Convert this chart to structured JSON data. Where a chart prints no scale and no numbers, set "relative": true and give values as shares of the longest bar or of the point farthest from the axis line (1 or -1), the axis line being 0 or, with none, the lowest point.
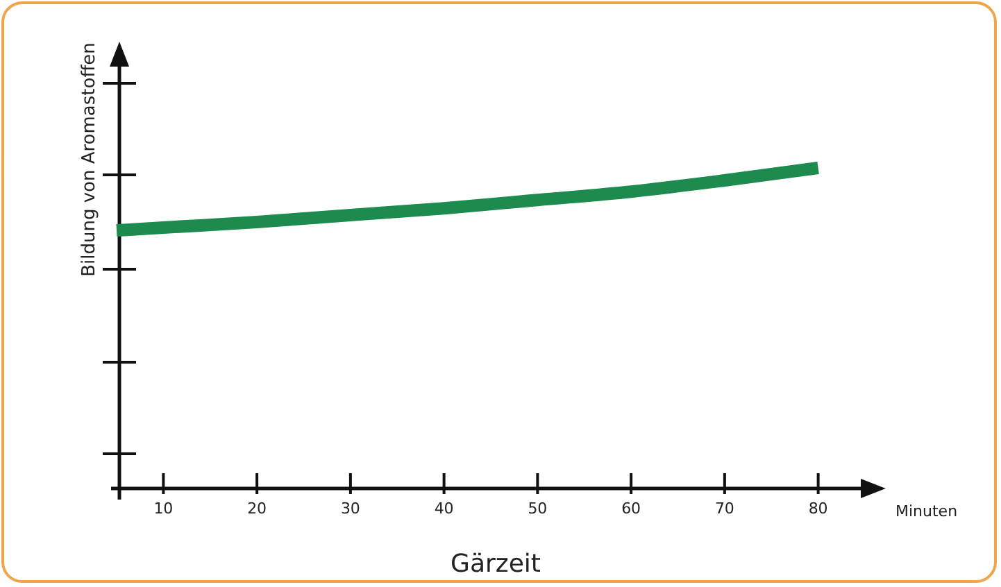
{
  "chart_data": {
    "type": "line",
    "relative": true,
    "xlabel": "Gärzeit",
    "ylabel": "Bildung von Aromastoffen",
    "annotations": [
      "Minuten"
    ],
    "x": [
      5,
      10,
      20,
      30,
      40,
      50,
      60,
      70,
      80
    ],
    "xlim": [
      5,
      85
    ],
    "xticks": [
      10,
      20,
      30,
      40,
      50,
      60,
      70,
      80
    ],
    "series": [
      {
        "color": "#1d8a4e",
        "values": [
          0.805,
          0.814,
          0.831,
          0.853,
          0.874,
          0.9,
          0.926,
          0.961,
          1
        ]
      }
    ]
  }
}
